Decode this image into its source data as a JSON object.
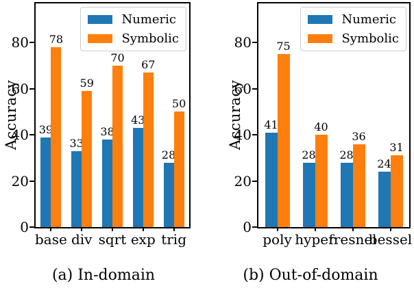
{
  "figure": {
    "background": "#ffffff",
    "axis_color": "#000000",
    "text_color": "#000000",
    "legend_border_color": "#cccccc"
  },
  "legend": {
    "entries": [
      "Numeric",
      "Symbolic"
    ],
    "colors": {
      "Numeric": "#1f77b4",
      "Symbolic": "#ff7f0e"
    }
  },
  "chart_data": [
    {
      "type": "bar",
      "caption": "(a) In-domain",
      "ylabel": "Accuracy",
      "categories": [
        "base",
        "div",
        "sqrt",
        "exp",
        "trig"
      ],
      "series": [
        {
          "name": "Numeric",
          "color": "#1f77b4",
          "values": [
            39,
            33,
            38,
            43,
            28
          ]
        },
        {
          "name": "Symbolic",
          "color": "#ff7f0e",
          "values": [
            78,
            59,
            70,
            67,
            50
          ]
        }
      ],
      "yticks": [
        0,
        20,
        40,
        60,
        80
      ],
      "ylim": [
        0,
        97
      ],
      "bar_labels": true,
      "grid": false,
      "legend_position": "upper right"
    },
    {
      "type": "bar",
      "caption": "(b) Out-of-domain",
      "ylabel": "Accuracy",
      "categories": [
        "poly",
        "hyper",
        "fresnel",
        "bessel"
      ],
      "series": [
        {
          "name": "Numeric",
          "color": "#1f77b4",
          "values": [
            41,
            28,
            28,
            24
          ]
        },
        {
          "name": "Symbolic",
          "color": "#ff7f0e",
          "values": [
            75,
            40,
            36,
            31
          ]
        }
      ],
      "yticks": [
        0,
        20,
        40,
        60,
        80
      ],
      "ylim": [
        0,
        97
      ],
      "bar_labels": true,
      "grid": false,
      "legend_position": "upper right"
    }
  ]
}
